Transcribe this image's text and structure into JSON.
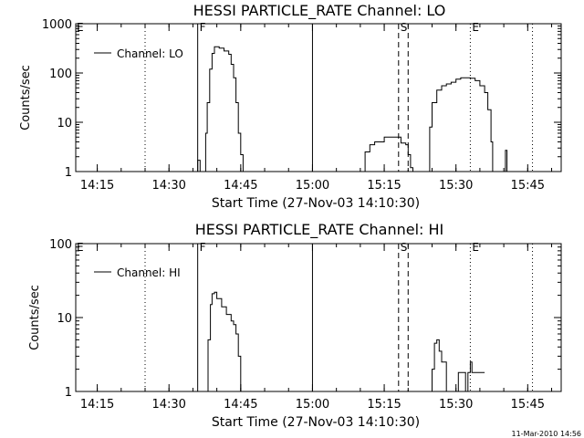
{
  "footer": {
    "date_stamp": "11-Mar-2010 14:56"
  },
  "chart_data": [
    {
      "type": "line",
      "title": "HESSI PARTICLE_RATE Channel: LO",
      "xlabel": "Start Time (27-Nov-03 14:10:30)",
      "ylabel": "Counts/sec",
      "yscale": "log",
      "xlim": [
        "14:10:30",
        "15:52:00"
      ],
      "ylim": [
        1,
        1000
      ],
      "x_ticks": [
        "14:15",
        "14:30",
        "14:45",
        "15:00",
        "15:15",
        "15:30",
        "15:45"
      ],
      "y_ticks": [
        "1",
        "10",
        "100",
        "1000"
      ],
      "legend": {
        "position": "top-left",
        "entries": [
          "Channel: LO"
        ]
      },
      "vlines": [
        {
          "time": "14:25",
          "style": "dotted",
          "label": ""
        },
        {
          "time": "14:36",
          "style": "solid",
          "label": "F"
        },
        {
          "time": "15:00",
          "style": "solid",
          "label": ""
        },
        {
          "time": "15:18",
          "style": "dashed",
          "label": "S"
        },
        {
          "time": "15:20",
          "style": "dashed",
          "label": ""
        },
        {
          "time": "15:33",
          "style": "dotted",
          "label": "E"
        },
        {
          "time": "15:46",
          "style": "dotted",
          "label": ""
        }
      ],
      "edge_marker": "E",
      "series": [
        {
          "name": "Channel: LO",
          "points": [
            [
              "14:35:30",
              1
            ],
            [
              "14:36:00",
              1.7
            ],
            [
              "14:36:30",
              1
            ],
            [
              "14:37:20",
              1
            ],
            [
              "14:37:40",
              6
            ],
            [
              "14:38:00",
              25
            ],
            [
              "14:38:30",
              120
            ],
            [
              "14:39:00",
              250
            ],
            [
              "14:39:30",
              340
            ],
            [
              "14:40:30",
              320
            ],
            [
              "14:41:30",
              280
            ],
            [
              "14:42:30",
              240
            ],
            [
              "14:43:00",
              150
            ],
            [
              "14:43:30",
              80
            ],
            [
              "14:44:00",
              25
            ],
            [
              "14:44:30",
              6
            ],
            [
              "14:45:00",
              2.2
            ],
            [
              "14:45:30",
              1
            ],
            [
              "15:10:00",
              1
            ],
            [
              "15:11:00",
              2.5
            ],
            [
              "15:12:00",
              3.5
            ],
            [
              "15:13:00",
              4
            ],
            [
              "15:14:00",
              4
            ],
            [
              "15:15:00",
              5
            ],
            [
              "15:17:00",
              5
            ],
            [
              "15:18:00",
              5
            ],
            [
              "15:18:30",
              3.8
            ],
            [
              "15:19:30",
              3.5
            ],
            [
              "15:20:00",
              2.2
            ],
            [
              "15:20:30",
              1.2
            ],
            [
              "15:21:00",
              1
            ],
            [
              "15:24:00",
              1
            ],
            [
              "15:24:30",
              8
            ],
            [
              "15:25:00",
              25
            ],
            [
              "15:26:00",
              45
            ],
            [
              "15:27:00",
              55
            ],
            [
              "15:28:00",
              60
            ],
            [
              "15:29:00",
              65
            ],
            [
              "15:30:00",
              75
            ],
            [
              "15:31:00",
              80
            ],
            [
              "15:32:00",
              80
            ],
            [
              "15:33:00",
              78
            ],
            [
              "15:34:00",
              70
            ],
            [
              "15:35:00",
              55
            ],
            [
              "15:36:00",
              40
            ],
            [
              "15:36:40",
              18
            ],
            [
              "15:37:20",
              4
            ],
            [
              "15:37:40",
              1
            ],
            [
              "15:40:00",
              1
            ],
            [
              "15:40:20",
              2.7
            ],
            [
              "15:40:40",
              1
            ]
          ]
        }
      ]
    },
    {
      "type": "line",
      "title": "HESSI PARTICLE_RATE Channel: HI",
      "xlabel": "Start Time (27-Nov-03 14:10:30)",
      "ylabel": "Counts/sec",
      "yscale": "log",
      "xlim": [
        "14:10:30",
        "15:52:00"
      ],
      "ylim": [
        1,
        100
      ],
      "x_ticks": [
        "14:15",
        "14:30",
        "14:45",
        "15:00",
        "15:15",
        "15:30",
        "15:45"
      ],
      "y_ticks": [
        "1",
        "10",
        "100"
      ],
      "legend": {
        "position": "top-left",
        "entries": [
          "Channel: HI"
        ]
      },
      "vlines": [
        {
          "time": "14:25",
          "style": "dotted",
          "label": ""
        },
        {
          "time": "14:36",
          "style": "solid",
          "label": "F"
        },
        {
          "time": "15:00",
          "style": "solid",
          "label": ""
        },
        {
          "time": "15:18",
          "style": "dashed",
          "label": "S"
        },
        {
          "time": "15:20",
          "style": "dashed",
          "label": ""
        },
        {
          "time": "15:33",
          "style": "dotted",
          "label": "E"
        },
        {
          "time": "15:46",
          "style": "dotted",
          "label": ""
        }
      ],
      "edge_marker": "E",
      "series": [
        {
          "name": "Channel: HI",
          "points": [
            [
              "14:37:40",
              1
            ],
            [
              "14:38:10",
              5
            ],
            [
              "14:38:40",
              15
            ],
            [
              "14:39:00",
              21
            ],
            [
              "14:39:30",
              22
            ],
            [
              "14:40:00",
              18
            ],
            [
              "14:41:00",
              14
            ],
            [
              "14:42:00",
              11
            ],
            [
              "14:43:00",
              9
            ],
            [
              "14:43:30",
              8
            ],
            [
              "14:44:00",
              6
            ],
            [
              "14:44:30",
              3
            ],
            [
              "14:45:00",
              1
            ],
            [
              "15:24:30",
              1
            ],
            [
              "15:25:00",
              2
            ],
            [
              "15:25:30",
              4.5
            ],
            [
              "15:26:00",
              5
            ],
            [
              "15:26:30",
              3.5
            ],
            [
              "15:27:00",
              2.5
            ],
            [
              "15:27:30",
              2.5
            ],
            [
              "15:28:00",
              1
            ],
            [
              "15:30:00",
              1
            ],
            [
              "15:30:30",
              1.8
            ],
            [
              "15:31:30",
              1.8
            ],
            [
              "15:32:00",
              1
            ],
            [
              "15:32:30",
              1.8
            ],
            [
              "15:33:00",
              2.5
            ],
            [
              "15:33:20",
              1.8
            ],
            [
              "15:36:00",
              1.8
            ]
          ]
        }
      ]
    }
  ]
}
